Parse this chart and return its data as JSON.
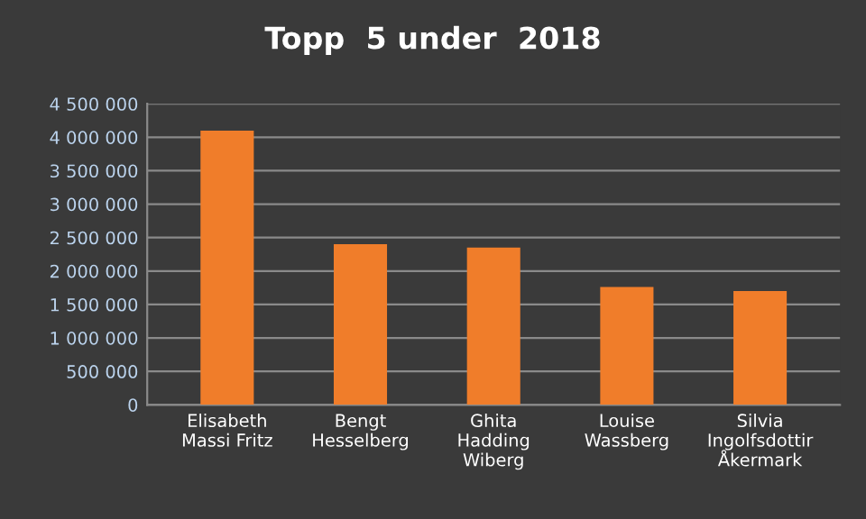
{
  "chart_data": {
    "type": "bar",
    "title": "Topp  5 under  2018",
    "categories": [
      "Elisabeth\nMassi Fritz",
      "Bengt\nHesselberg",
      "Ghita\nHadding\nWiberg",
      "Louise\nWassberg",
      "Silvia\nIngolfsdottir\nÅkermark"
    ],
    "values": [
      4100000,
      2400000,
      2350000,
      1760000,
      1700000
    ],
    "color": "#f07d2a",
    "ylim": [
      0,
      4500000
    ],
    "yticks": [
      {
        "value": 0,
        "label": "0"
      },
      {
        "value": 500000,
        "label": "500 000"
      },
      {
        "value": 1000000,
        "label": "1 000 000"
      },
      {
        "value": 1500000,
        "label": "1 500 000"
      },
      {
        "value": 2000000,
        "label": "2 000 000"
      },
      {
        "value": 2500000,
        "label": "2 500 000"
      },
      {
        "value": 3000000,
        "label": "3 000 000"
      },
      {
        "value": 3500000,
        "label": "3 500 000"
      },
      {
        "value": 4000000,
        "label": "4 000 000"
      },
      {
        "value": 4500000,
        "label": "4 500 000"
      }
    ],
    "grid": "y"
  }
}
